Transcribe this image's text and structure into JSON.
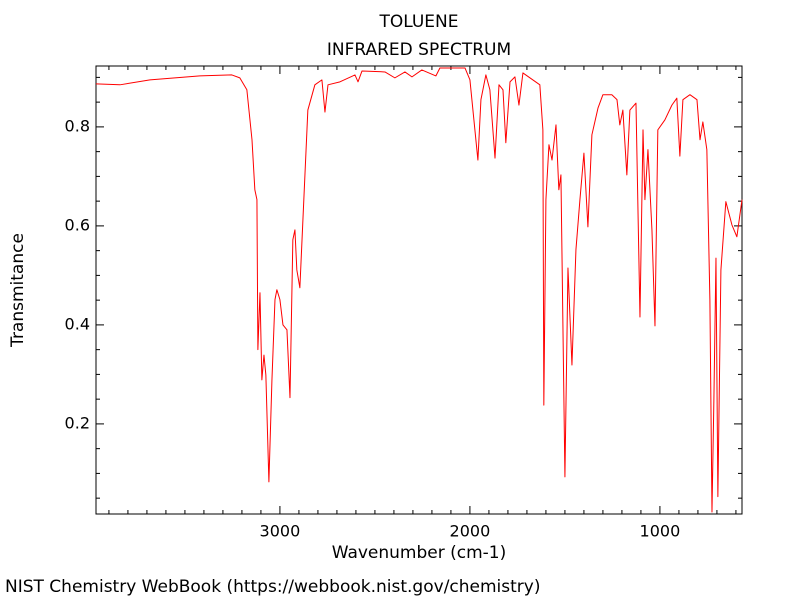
{
  "chart_data": {
    "type": "line",
    "title": "TOLUENE",
    "subtitle": "INFRARED SPECTRUM",
    "x_label": "Wavenumber (cm-1)",
    "y_label": "Transmitance",
    "source": "NIST Chemistry WebBook (https://webbook.nist.gov/chemistry)",
    "color": "#ff0000",
    "xlim": [
      3968,
      568
    ],
    "ylim": [
      0.018,
      0.923
    ],
    "xticks": [
      3000,
      2000,
      1000
    ],
    "yticks": [
      0.2,
      0.4,
      0.6,
      0.8
    ],
    "xminorticks": [
      3900,
      3800,
      3700,
      3600,
      3500,
      3400,
      3300,
      3200,
      3100,
      2900,
      2800,
      2700,
      2600,
      2500,
      2400,
      2300,
      2200,
      2100,
      1900,
      1800,
      1700,
      1600,
      1500,
      1400,
      1300,
      1200,
      1100,
      900,
      800,
      700,
      600
    ],
    "yminorticks": [
      0.05,
      0.1,
      0.15,
      0.25,
      0.3,
      0.35,
      0.45,
      0.5,
      0.55,
      0.65,
      0.7,
      0.75,
      0.85,
      0.9
    ],
    "x": [
      3968,
      3842,
      3684,
      3421,
      3253,
      3211,
      3174,
      3147,
      3132,
      3121,
      3116,
      3105,
      3095,
      3084,
      3074,
      3058,
      3042,
      3026,
      3016,
      3000,
      2984,
      2963,
      2947,
      2932,
      2921,
      2911,
      2895,
      2879,
      2853,
      2816,
      2779,
      2763,
      2747,
      2684,
      2605,
      2589,
      2568,
      2447,
      2395,
      2342,
      2305,
      2253,
      2179,
      2158,
      2026,
      2000,
      1979,
      1958,
      1942,
      1916,
      1895,
      1868,
      1847,
      1826,
      1811,
      1789,
      1763,
      1742,
      1721,
      1632,
      1616,
      1611,
      1600,
      1584,
      1568,
      1547,
      1532,
      1521,
      1500,
      1484,
      1463,
      1442,
      1421,
      1400,
      1379,
      1358,
      1326,
      1300,
      1253,
      1226,
      1211,
      1195,
      1174,
      1158,
      1126,
      1105,
      1089,
      1079,
      1063,
      1042,
      1026,
      1011,
      974,
      937,
      911,
      895,
      879,
      842,
      805,
      789,
      774,
      753,
      737,
      726,
      716,
      705,
      695,
      679,
      653,
      621,
      595,
      568
    ],
    "values": [
      0.887,
      0.885,
      0.895,
      0.903,
      0.905,
      0.899,
      0.875,
      0.774,
      0.673,
      0.653,
      0.35,
      0.465,
      0.289,
      0.339,
      0.299,
      0.083,
      0.289,
      0.451,
      0.471,
      0.451,
      0.4,
      0.39,
      0.253,
      0.572,
      0.592,
      0.511,
      0.475,
      0.612,
      0.834,
      0.885,
      0.895,
      0.83,
      0.885,
      0.891,
      0.905,
      0.891,
      0.913,
      0.911,
      0.899,
      0.911,
      0.901,
      0.915,
      0.903,
      0.919,
      0.919,
      0.895,
      0.814,
      0.733,
      0.855,
      0.905,
      0.875,
      0.737,
      0.885,
      0.875,
      0.768,
      0.891,
      0.901,
      0.844,
      0.909,
      0.885,
      0.794,
      0.238,
      0.653,
      0.764,
      0.733,
      0.804,
      0.673,
      0.703,
      0.093,
      0.515,
      0.319,
      0.552,
      0.653,
      0.747,
      0.598,
      0.784,
      0.838,
      0.865,
      0.865,
      0.855,
      0.804,
      0.834,
      0.703,
      0.834,
      0.848,
      0.416,
      0.794,
      0.653,
      0.754,
      0.592,
      0.398,
      0.794,
      0.814,
      0.844,
      0.858,
      0.741,
      0.855,
      0.865,
      0.855,
      0.774,
      0.81,
      0.754,
      0.451,
      0.022,
      0.248,
      0.535,
      0.053,
      0.511,
      0.649,
      0.602,
      0.578,
      0.653
    ]
  }
}
